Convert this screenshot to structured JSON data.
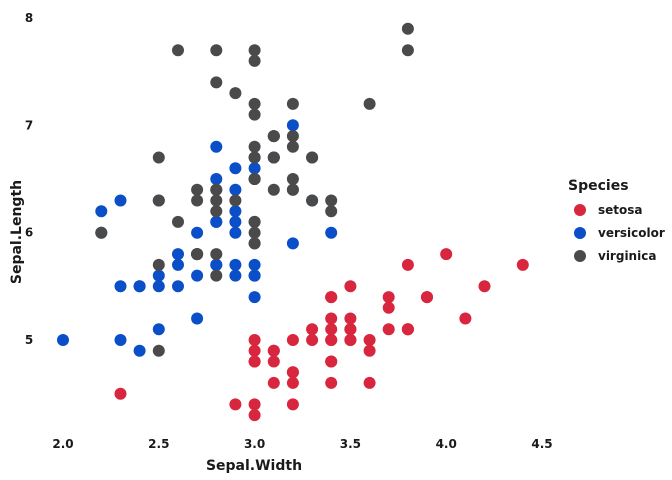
{
  "chart_data": {
    "type": "scatter",
    "title": "",
    "xlabel": "Sepal.Width",
    "ylabel": "Sepal.Length",
    "xlim": [
      1.95,
      4.45
    ],
    "ylim": [
      4.2,
      8.05
    ],
    "xticks": [
      "2.0",
      "2.5",
      "3.0",
      "3.5",
      "4.0",
      "4.5"
    ],
    "yticks": [
      "5",
      "6",
      "7",
      "8"
    ],
    "grid": false,
    "legend": {
      "title": "Species",
      "position": "right"
    },
    "series": [
      {
        "name": "setosa",
        "color": "#d7263d",
        "points": [
          [
            3.5,
            5.1
          ],
          [
            3.0,
            4.9
          ],
          [
            3.2,
            4.7
          ],
          [
            3.1,
            4.6
          ],
          [
            3.6,
            5.0
          ],
          [
            3.9,
            5.4
          ],
          [
            3.4,
            4.6
          ],
          [
            3.4,
            5.0
          ],
          [
            2.9,
            4.4
          ],
          [
            3.1,
            4.9
          ],
          [
            3.7,
            5.4
          ],
          [
            3.4,
            4.8
          ],
          [
            3.0,
            4.8
          ],
          [
            3.0,
            4.3
          ],
          [
            4.0,
            5.8
          ],
          [
            4.4,
            5.7
          ],
          [
            3.9,
            5.4
          ],
          [
            3.5,
            5.1
          ],
          [
            3.8,
            5.7
          ],
          [
            3.8,
            5.1
          ],
          [
            3.4,
            5.4
          ],
          [
            3.7,
            5.1
          ],
          [
            3.6,
            4.6
          ],
          [
            3.3,
            5.1
          ],
          [
            3.4,
            4.8
          ],
          [
            3.0,
            5.0
          ],
          [
            3.4,
            5.0
          ],
          [
            3.5,
            5.2
          ],
          [
            3.4,
            5.2
          ],
          [
            3.2,
            4.7
          ],
          [
            3.1,
            4.8
          ],
          [
            3.4,
            5.4
          ],
          [
            4.1,
            5.2
          ],
          [
            4.2,
            5.5
          ],
          [
            3.1,
            4.9
          ],
          [
            3.2,
            5.0
          ],
          [
            3.5,
            5.5
          ],
          [
            3.6,
            4.9
          ],
          [
            3.0,
            4.4
          ],
          [
            3.4,
            5.1
          ],
          [
            3.5,
            5.0
          ],
          [
            2.3,
            4.5
          ],
          [
            3.2,
            4.4
          ],
          [
            3.5,
            5.0
          ],
          [
            3.8,
            5.1
          ],
          [
            3.0,
            4.8
          ],
          [
            3.8,
            5.1
          ],
          [
            3.2,
            4.6
          ],
          [
            3.7,
            5.3
          ],
          [
            3.3,
            5.0
          ]
        ]
      },
      {
        "name": "versicolor",
        "color": "#0a4fc7",
        "points": [
          [
            3.2,
            7.0
          ],
          [
            3.2,
            6.4
          ],
          [
            3.1,
            6.9
          ],
          [
            2.3,
            5.5
          ],
          [
            2.8,
            6.5
          ],
          [
            2.8,
            5.7
          ],
          [
            3.3,
            6.3
          ],
          [
            2.4,
            4.9
          ],
          [
            2.9,
            6.6
          ],
          [
            2.7,
            5.2
          ],
          [
            2.0,
            5.0
          ],
          [
            3.0,
            5.9
          ],
          [
            2.2,
            6.0
          ],
          [
            2.9,
            6.1
          ],
          [
            2.9,
            5.6
          ],
          [
            3.1,
            6.7
          ],
          [
            3.0,
            5.6
          ],
          [
            2.7,
            5.8
          ],
          [
            2.2,
            6.2
          ],
          [
            2.5,
            5.6
          ],
          [
            3.2,
            5.9
          ],
          [
            2.8,
            6.1
          ],
          [
            2.5,
            6.3
          ],
          [
            2.8,
            6.1
          ],
          [
            2.9,
            6.4
          ],
          [
            3.0,
            6.6
          ],
          [
            2.8,
            6.8
          ],
          [
            3.0,
            6.7
          ],
          [
            2.9,
            6.0
          ],
          [
            2.6,
            5.7
          ],
          [
            2.4,
            5.5
          ],
          [
            2.4,
            5.5
          ],
          [
            2.7,
            5.8
          ],
          [
            2.7,
            6.0
          ],
          [
            3.0,
            5.4
          ],
          [
            3.4,
            6.0
          ],
          [
            3.1,
            6.7
          ],
          [
            2.3,
            6.3
          ],
          [
            3.0,
            5.6
          ],
          [
            2.5,
            5.5
          ],
          [
            2.6,
            5.5
          ],
          [
            3.0,
            6.1
          ],
          [
            2.6,
            5.8
          ],
          [
            2.3,
            5.0
          ],
          [
            2.7,
            5.6
          ],
          [
            3.0,
            5.7
          ],
          [
            2.9,
            5.7
          ],
          [
            2.9,
            6.2
          ],
          [
            2.5,
            5.1
          ],
          [
            2.8,
            5.7
          ]
        ]
      },
      {
        "name": "virginica",
        "color": "#4a4a4a",
        "points": [
          [
            3.3,
            6.3
          ],
          [
            2.7,
            5.8
          ],
          [
            3.0,
            7.1
          ],
          [
            2.9,
            6.3
          ],
          [
            3.0,
            6.5
          ],
          [
            3.0,
            7.6
          ],
          [
            2.5,
            4.9
          ],
          [
            2.9,
            7.3
          ],
          [
            2.5,
            6.7
          ],
          [
            3.6,
            7.2
          ],
          [
            3.2,
            6.5
          ],
          [
            2.7,
            6.4
          ],
          [
            3.0,
            6.8
          ],
          [
            2.5,
            5.7
          ],
          [
            2.8,
            5.8
          ],
          [
            3.2,
            6.4
          ],
          [
            3.0,
            6.5
          ],
          [
            3.8,
            7.7
          ],
          [
            2.6,
            7.7
          ],
          [
            2.2,
            6.0
          ],
          [
            3.2,
            6.9
          ],
          [
            2.8,
            5.6
          ],
          [
            2.8,
            7.7
          ],
          [
            2.7,
            6.3
          ],
          [
            3.3,
            6.7
          ],
          [
            3.2,
            7.2
          ],
          [
            2.8,
            6.2
          ],
          [
            3.0,
            6.1
          ],
          [
            2.8,
            6.4
          ],
          [
            3.0,
            7.2
          ],
          [
            2.8,
            7.4
          ],
          [
            3.8,
            7.9
          ],
          [
            2.8,
            6.4
          ],
          [
            2.8,
            6.3
          ],
          [
            2.6,
            6.1
          ],
          [
            3.0,
            7.7
          ],
          [
            3.4,
            6.3
          ],
          [
            3.1,
            6.4
          ],
          [
            3.0,
            6.0
          ],
          [
            3.1,
            6.9
          ],
          [
            3.1,
            6.7
          ],
          [
            3.1,
            6.9
          ],
          [
            2.7,
            5.8
          ],
          [
            3.2,
            6.8
          ],
          [
            3.3,
            6.7
          ],
          [
            3.0,
            6.7
          ],
          [
            2.5,
            6.3
          ],
          [
            3.0,
            6.5
          ],
          [
            3.4,
            6.2
          ],
          [
            3.0,
            5.9
          ]
        ]
      }
    ]
  }
}
